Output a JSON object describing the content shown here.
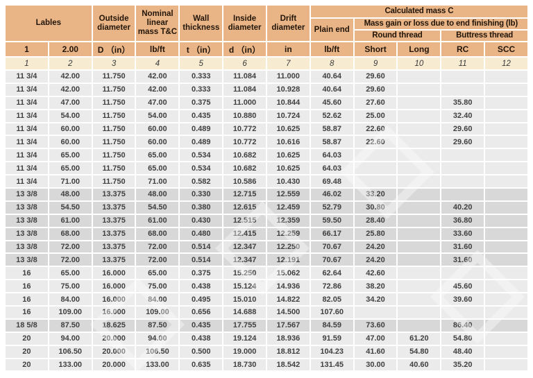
{
  "table": {
    "header": {
      "labels": "Lables",
      "outside_diameter": "Outside diameter",
      "nominal_linear_mass": "Nominal linear mass T&C",
      "wall_thickness": "Wall thickness",
      "inside_diameter": "Inside diameter",
      "drift_diameter": "Drift diameter",
      "calculated_mass": "Calculated mass C",
      "plain_end": "Plain end",
      "mass_gain": "Mass gain or loss due to end finishing  (lb)",
      "round_thread": "Round thread",
      "buttress_thread": "Buttress thread"
    },
    "units": [
      "1",
      "2.00",
      "D （in）",
      "lb/ft",
      "t （in）",
      "d （in）",
      "in",
      "lb/ft",
      "Short",
      "Long",
      "RC",
      "SCC"
    ],
    "column_numbers": [
      "1",
      "2",
      "3",
      "4",
      "5",
      "6",
      "7",
      "8",
      "9",
      "10",
      "11",
      "12"
    ],
    "rows": [
      [
        "11 3/4",
        "42.00",
        "11.750",
        "42.00",
        "0.333",
        "11.084",
        "11.000",
        "40.64",
        "29.60",
        "",
        "",
        ""
      ],
      [
        "11 3/4",
        "42.00",
        "11.750",
        "42.00",
        "0.333",
        "11.084",
        "10.928",
        "40.64",
        "29.60",
        "",
        "",
        ""
      ],
      [
        "11 3/4",
        "47.00",
        "11.750",
        "47.00",
        "0.375",
        "11.000",
        "10.844",
        "45.60",
        "27.60",
        "",
        "35.80",
        ""
      ],
      [
        "11 3/4",
        "54.00",
        "11.750",
        "54.00",
        "0.435",
        "10.880",
        "10.724",
        "52.62",
        "25.00",
        "",
        "32.40",
        ""
      ],
      [
        "11 3/4",
        "60.00",
        "11.750",
        "60.00",
        "0.489",
        "10.772",
        "10.625",
        "58.87",
        "22.60",
        "",
        "29.60",
        ""
      ],
      [
        "11 3/4",
        "60.00",
        "11.750",
        "60.00",
        "0.489",
        "10.772",
        "10.616",
        "58.87",
        "22.60",
        "",
        "29.60",
        ""
      ],
      [
        "11 3/4",
        "65.00",
        "11.750",
        "65.00",
        "0.534",
        "10.682",
        "10.625",
        "64.03",
        "",
        "",
        "",
        ""
      ],
      [
        "11 3/4",
        "65.00",
        "11.750",
        "65.00",
        "0.534",
        "10.682",
        "10.625",
        "64.03",
        "",
        "",
        "",
        ""
      ],
      [
        "11 3/4",
        "71.00",
        "11.750",
        "71.00",
        "0.582",
        "10.586",
        "10.430",
        "69.48",
        "",
        "",
        "",
        ""
      ],
      [
        "13 3/8",
        "48.00",
        "13.375",
        "48.00",
        "0.330",
        "12.715",
        "12.559",
        "46.02",
        "33.20",
        "",
        "",
        ""
      ],
      [
        "13 3/8",
        "54.50",
        "13.375",
        "54.50",
        "0.380",
        "12.615",
        "12.459",
        "52.79",
        "30.80",
        "",
        "40.20",
        ""
      ],
      [
        "13 3/8",
        "61.00",
        "13.375",
        "61.00",
        "0.430",
        "12.515",
        "12.359",
        "59.50",
        "28.40",
        "",
        "36.80",
        ""
      ],
      [
        "13 3/8",
        "68.00",
        "13.375",
        "68.00",
        "0.480",
        "12.415",
        "12.259",
        "66.17",
        "25.80",
        "",
        "33.60",
        ""
      ],
      [
        "13 3/8",
        "72.00",
        "13.375",
        "72.00",
        "0.514",
        "12.347",
        "12.250",
        "70.67",
        "24.20",
        "",
        "31.60",
        ""
      ],
      [
        "13 3/8",
        "72.00",
        "13.375",
        "72.00",
        "0.514",
        "12.347",
        "12.191",
        "70.67",
        "24.20",
        "",
        "31.60",
        ""
      ],
      [
        "16",
        "65.00",
        "16.000",
        "65.00",
        "0.375",
        "15.250",
        "15.062",
        "62.64",
        "42.60",
        "",
        "",
        ""
      ],
      [
        "16",
        "75.00",
        "16.000",
        "75.00",
        "0.438",
        "15.124",
        "14.936",
        "72.86",
        "38.20",
        "",
        "45.60",
        ""
      ],
      [
        "16",
        "84.00",
        "16.000",
        "84.00",
        "0.495",
        "15.010",
        "14.822",
        "82.05",
        "34.20",
        "",
        "39.60",
        ""
      ],
      [
        "16",
        "109.00",
        "16.000",
        "109.00",
        "0.656",
        "14.688",
        "14.500",
        "107.60",
        "",
        "",
        "",
        ""
      ],
      [
        "18 5/8",
        "87.50",
        "18.625",
        "87.50",
        "0.435",
        "17.755",
        "17.567",
        "84.59",
        "73.60",
        "",
        "86.40",
        ""
      ],
      [
        "20",
        "94.00",
        "20.000",
        "94.00",
        "0.438",
        "19.124",
        "18.936",
        "91.59",
        "47.00",
        "61.20",
        "54.80",
        ""
      ],
      [
        "20",
        "106.50",
        "20.000",
        "106.50",
        "0.500",
        "19.000",
        "18.812",
        "104.23",
        "41.60",
        "54.80",
        "48.40",
        ""
      ],
      [
        "20",
        "133.00",
        "20.000",
        "133.00",
        "0.635",
        "18.730",
        "18.542",
        "131.45",
        "30.00",
        "40.60",
        "35.20",
        ""
      ]
    ]
  },
  "colors": {
    "header_bg": "#e9b587",
    "index_bg": "#f7ecd2",
    "row_light": "#ebebeb",
    "row_dark": "#d8d8d8"
  }
}
